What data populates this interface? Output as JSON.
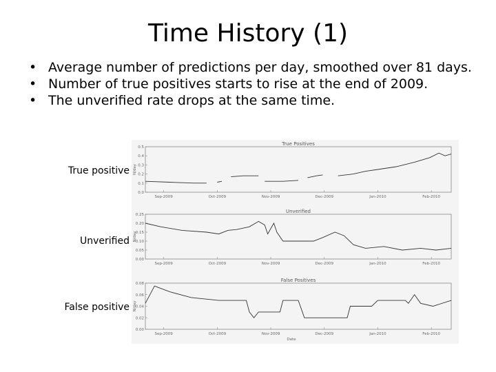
{
  "slide": {
    "title": "Time History (1)",
    "bullets": [
      "Average number of predictions per day, smoothed over 81 days.",
      "Number of true positives starts to rise at the end of 2009.",
      "The unverified rate drops at the same time."
    ],
    "bullet_glyph": "•"
  },
  "labels": {
    "true_positive": "True positive",
    "unverified": "Unverified",
    "false_positive": "False positive"
  },
  "chart_data": [
    {
      "type": "line",
      "title": "True Positives",
      "ylabel": "N/day",
      "xlabel": "",
      "ylim": [
        0.0,
        0.5
      ],
      "yticks": [
        "0.0",
        "0.1",
        "0.2",
        "0.3",
        "0.4",
        "0.5"
      ],
      "xticks": [
        "Sep-2009",
        "Oct-2009",
        "Nov-2009",
        "Dec-2009",
        "Jan-2010",
        "Feb-2010"
      ],
      "series": [
        {
          "segments": [
            [
              [
                0,
                0.12
              ],
              [
                0.08,
                0.11
              ],
              [
                0.16,
                0.1
              ],
              [
                0.2,
                0.1
              ]
            ],
            [
              [
                0.235,
                0.11
              ],
              [
                0.25,
                0.12
              ]
            ],
            [
              [
                0.28,
                0.17
              ],
              [
                0.32,
                0.18
              ],
              [
                0.37,
                0.18
              ]
            ],
            [
              [
                0.39,
                0.12
              ],
              [
                0.45,
                0.12
              ],
              [
                0.5,
                0.13
              ]
            ],
            [
              [
                0.53,
                0.16
              ],
              [
                0.56,
                0.18
              ],
              [
                0.58,
                0.19
              ]
            ],
            [
              [
                0.63,
                0.18
              ],
              [
                0.68,
                0.2
              ],
              [
                0.72,
                0.23
              ],
              [
                0.76,
                0.25
              ],
              [
                0.82,
                0.28
              ],
              [
                0.88,
                0.33
              ],
              [
                0.93,
                0.38
              ],
              [
                0.96,
                0.43
              ],
              [
                0.98,
                0.4
              ],
              [
                1.0,
                0.42
              ]
            ]
          ]
        }
      ]
    },
    {
      "type": "line",
      "title": "Unverified",
      "ylabel": "N/day",
      "xlabel": "",
      "ylim": [
        0.0,
        0.25
      ],
      "yticks": [
        "0.00",
        "0.05",
        "0.10",
        "0.15",
        "0.20",
        "0.25"
      ],
      "xticks": [
        "Sep-2009",
        "Oct-2009",
        "Nov-2009",
        "Dec-2009",
        "Jan-2010",
        "Feb-2010"
      ],
      "series": [
        {
          "segments": [
            [
              [
                0,
                0.2
              ],
              [
                0.05,
                0.18
              ],
              [
                0.12,
                0.16
              ],
              [
                0.2,
                0.15
              ],
              [
                0.24,
                0.14
              ],
              [
                0.27,
                0.16
              ],
              [
                0.3,
                0.165
              ],
              [
                0.34,
                0.18
              ],
              [
                0.37,
                0.21
              ],
              [
                0.39,
                0.19
              ],
              [
                0.4,
                0.14
              ],
              [
                0.42,
                0.2
              ],
              [
                0.43,
                0.15
              ],
              [
                0.45,
                0.1
              ],
              [
                0.5,
                0.1
              ],
              [
                0.55,
                0.1
              ],
              [
                0.58,
                0.12
              ],
              [
                0.62,
                0.15
              ],
              [
                0.65,
                0.13
              ],
              [
                0.68,
                0.08
              ],
              [
                0.72,
                0.06
              ],
              [
                0.78,
                0.07
              ],
              [
                0.84,
                0.05
              ],
              [
                0.9,
                0.06
              ],
              [
                0.95,
                0.05
              ],
              [
                1.0,
                0.06
              ]
            ]
          ]
        }
      ]
    },
    {
      "type": "line",
      "title": "False Positives",
      "ylabel": "N/day",
      "xlabel": "Date",
      "ylim": [
        0.0,
        0.08
      ],
      "yticks": [
        "0.00",
        "0.02",
        "0.04",
        "0.06",
        "0.08"
      ],
      "xticks": [
        "Sep-2009",
        "Oct-2009",
        "Nov-2009",
        "Dec-2009",
        "Jan-2010",
        "Feb-2010"
      ],
      "series": [
        {
          "segments": [
            [
              [
                0,
                0.045
              ],
              [
                0.03,
                0.075
              ],
              [
                0.08,
                0.065
              ],
              [
                0.15,
                0.055
              ],
              [
                0.24,
                0.05
              ],
              [
                0.33,
                0.05
              ],
              [
                0.34,
                0.03
              ],
              [
                0.355,
                0.02
              ],
              [
                0.37,
                0.03
              ],
              [
                0.44,
                0.03
              ],
              [
                0.45,
                0.05
              ],
              [
                0.5,
                0.05
              ],
              [
                0.52,
                0.02
              ],
              [
                0.66,
                0.02
              ],
              [
                0.67,
                0.04
              ],
              [
                0.74,
                0.04
              ],
              [
                0.76,
                0.05
              ],
              [
                0.85,
                0.05
              ],
              [
                0.86,
                0.045
              ],
              [
                0.88,
                0.06
              ],
              [
                0.9,
                0.045
              ],
              [
                0.94,
                0.04
              ],
              [
                1.0,
                0.05
              ]
            ]
          ]
        }
      ]
    }
  ]
}
